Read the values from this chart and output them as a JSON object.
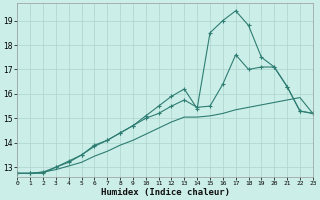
{
  "xlabel": "Humidex (Indice chaleur)",
  "background_color": "#cceee8",
  "grid_color": "#aad4cc",
  "line_color": "#2e7d72",
  "xlim": [
    0,
    23
  ],
  "ylim": [
    12.6,
    19.7
  ],
  "yticks": [
    13,
    14,
    15,
    16,
    17,
    18,
    19
  ],
  "xticks": [
    0,
    1,
    2,
    3,
    4,
    5,
    6,
    7,
    8,
    9,
    10,
    11,
    12,
    13,
    14,
    15,
    16,
    17,
    18,
    19,
    20,
    21,
    22,
    23
  ],
  "line1_x": [
    0,
    1,
    2,
    3,
    4,
    5,
    6,
    7,
    8,
    9,
    10,
    11,
    12,
    13,
    14,
    15,
    16,
    17,
    18,
    19,
    20,
    21,
    22,
    23
  ],
  "line1_y": [
    12.75,
    12.75,
    12.75,
    13.0,
    13.2,
    13.5,
    13.9,
    14.1,
    14.4,
    14.7,
    15.1,
    15.5,
    15.9,
    16.2,
    15.4,
    18.5,
    19.0,
    19.4,
    18.8,
    17.5,
    17.1,
    16.3,
    15.3,
    15.2
  ],
  "line2_x": [
    0,
    1,
    2,
    3,
    4,
    5,
    6,
    7,
    8,
    9,
    10,
    11,
    12,
    13,
    14,
    15,
    16,
    17,
    18,
    19,
    20,
    21,
    22,
    23
  ],
  "line2_y": [
    12.75,
    12.75,
    12.8,
    13.0,
    13.25,
    13.5,
    13.85,
    14.1,
    14.4,
    14.7,
    15.0,
    15.2,
    15.5,
    15.75,
    15.45,
    15.5,
    16.4,
    17.6,
    17.0,
    17.1,
    17.1,
    16.3,
    15.3,
    15.2
  ],
  "line3_x": [
    0,
    1,
    2,
    3,
    4,
    5,
    6,
    7,
    8,
    9,
    10,
    11,
    12,
    13,
    14,
    15,
    16,
    17,
    18,
    19,
    20,
    21,
    22,
    23
  ],
  "line3_y": [
    12.75,
    12.75,
    12.8,
    12.9,
    13.05,
    13.2,
    13.45,
    13.65,
    13.9,
    14.1,
    14.35,
    14.6,
    14.85,
    15.05,
    15.05,
    15.1,
    15.2,
    15.35,
    15.45,
    15.55,
    15.65,
    15.75,
    15.85,
    15.2
  ]
}
